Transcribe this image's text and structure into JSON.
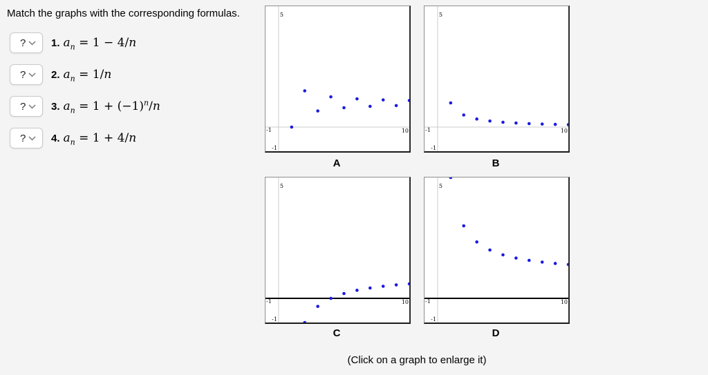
{
  "page": {
    "title": "Match the graphs with the corresponding formulas.",
    "footnote": "(Click on a graph to enlarge it)"
  },
  "matching": {
    "placeholder": "?",
    "items": [
      {
        "num": "1.",
        "a": "a",
        "sub": "n",
        "eq1": " = 1 − 4/",
        "sup": "",
        "eq2": "",
        "var2": "n"
      },
      {
        "num": "2.",
        "a": "a",
        "sub": "n",
        "eq1": " = 1/",
        "sup": "",
        "eq2": "",
        "var2": "n"
      },
      {
        "num": "3.",
        "a": "a",
        "sub": "n",
        "eq1": " = 1 + (−1)",
        "sup": "n",
        "eq2": "/",
        "var2": "n"
      },
      {
        "num": "4.",
        "a": "a",
        "sub": "n",
        "eq1": " = 1 + 4/",
        "sup": "",
        "eq2": "",
        "var2": "n"
      }
    ]
  },
  "colors": {
    "point": "#1b1be0",
    "axis_light": "#cccccc",
    "axis_dark": "#000000",
    "panel_bg": "#ffffff",
    "page_bg": "#f4f4f4"
  },
  "chart_data": [
    {
      "type": "scatter",
      "label": "A",
      "x": [
        1,
        2,
        3,
        4,
        5,
        6,
        7,
        8,
        9,
        10
      ],
      "y": [
        0,
        1.5,
        0.6667,
        1.25,
        0.8,
        1.1667,
        0.8571,
        1.125,
        0.8889,
        1.1
      ],
      "xlim": [
        -1,
        10
      ],
      "ylim": [
        -1,
        5
      ],
      "ticks": {
        "top": "5",
        "left": "-1",
        "right": "10",
        "bottom": "-1"
      },
      "x_axis_style": "light",
      "grid": false,
      "legend": false
    },
    {
      "type": "scatter",
      "label": "B",
      "x": [
        1,
        2,
        3,
        4,
        5,
        6,
        7,
        8,
        9,
        10
      ],
      "y": [
        1,
        0.5,
        0.3333,
        0.25,
        0.2,
        0.1667,
        0.1429,
        0.125,
        0.1111,
        0.1
      ],
      "xlim": [
        -1,
        10
      ],
      "ylim": [
        -1,
        5
      ],
      "ticks": {
        "top": "5",
        "left": "-1",
        "right": "10",
        "bottom": "-1"
      },
      "x_axis_style": "light",
      "grid": false,
      "legend": false
    },
    {
      "type": "scatter",
      "label": "C",
      "x": [
        1,
        2,
        3,
        4,
        5,
        6,
        7,
        8,
        9,
        10
      ],
      "y": [
        -3,
        -1,
        -0.3333,
        0,
        0.2,
        0.3333,
        0.4286,
        0.5,
        0.5556,
        0.6
      ],
      "xlim": [
        -1,
        10
      ],
      "ylim": [
        -1,
        5
      ],
      "ticks": {
        "top": "5",
        "left": "-1",
        "right": "10",
        "bottom": "-1"
      },
      "x_axis_style": "dark",
      "grid": false,
      "legend": false
    },
    {
      "type": "scatter",
      "label": "D",
      "x": [
        1,
        2,
        3,
        4,
        5,
        6,
        7,
        8,
        9,
        10
      ],
      "y": [
        5,
        3,
        2.3333,
        2,
        1.8,
        1.6667,
        1.5714,
        1.5,
        1.4444,
        1.4
      ],
      "xlim": [
        -1,
        10
      ],
      "ylim": [
        -1,
        5
      ],
      "ticks": {
        "top": "5",
        "left": "-1",
        "right": "10",
        "bottom": "-1"
      },
      "x_axis_style": "dark",
      "grid": false,
      "legend": false
    }
  ]
}
